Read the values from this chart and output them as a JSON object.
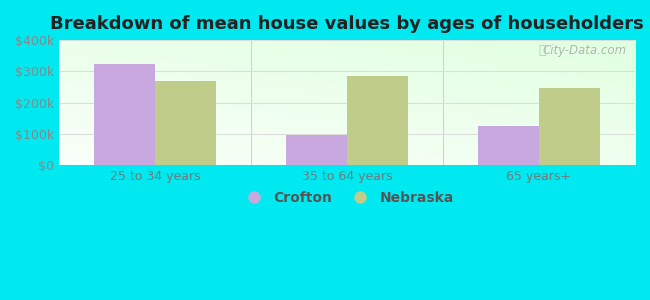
{
  "title": "Breakdown of mean house values by ages of householders",
  "categories": [
    "25 to 34 years",
    "35 to 64 years",
    "65 years+"
  ],
  "crofton_values": [
    325000,
    95000,
    125000
  ],
  "nebraska_values": [
    270000,
    285000,
    245000
  ],
  "ylim": [
    0,
    400000
  ],
  "yticks": [
    0,
    100000,
    200000,
    300000,
    400000
  ],
  "ytick_labels": [
    "$0",
    "$100k",
    "$200k",
    "$300k",
    "$400k"
  ],
  "crofton_color": "#c9a8e0",
  "nebraska_color": "#bfcc8a",
  "background_outer": "#00e8f0",
  "grid_color": "#dddddd",
  "title_fontsize": 13,
  "legend_fontsize": 10,
  "tick_fontsize": 9,
  "bar_width": 0.32,
  "watermark_text": "City-Data.com",
  "separator_color": "#aaccaa"
}
